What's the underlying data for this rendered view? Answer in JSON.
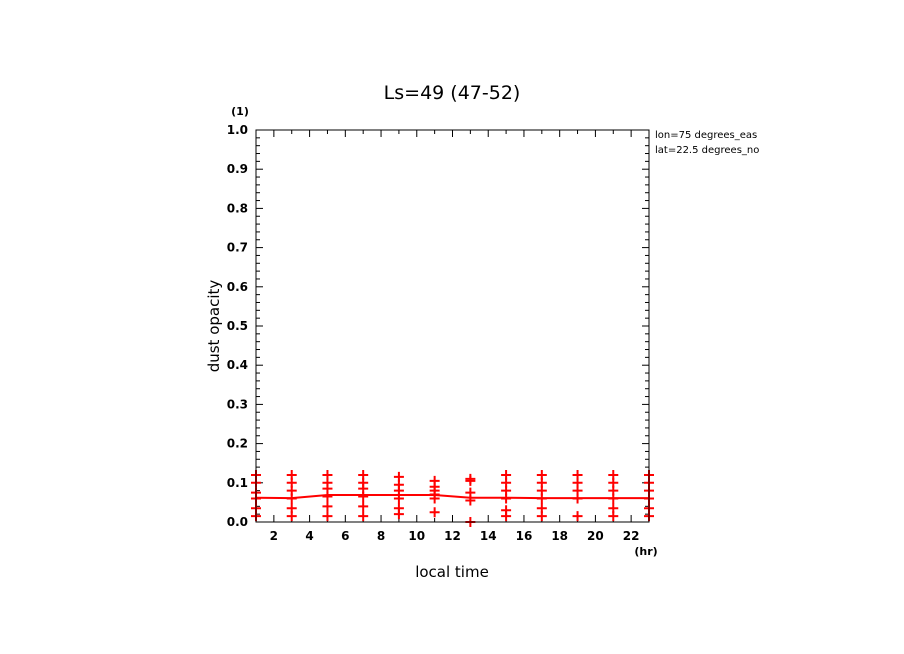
{
  "chart_data": {
    "type": "line",
    "title": "Ls=49 (47-52)",
    "xlabel": "local time",
    "ylabel": "dust opacity",
    "x_unit": "(hr)",
    "y_unit": "(1)",
    "xlim": [
      1,
      23
    ],
    "ylim": [
      0,
      1
    ],
    "x_ticks": [
      2,
      4,
      6,
      8,
      10,
      12,
      14,
      16,
      18,
      20,
      22
    ],
    "x_tick_labels": [
      "2",
      "4",
      "6",
      "8",
      "10",
      "12",
      "14",
      "16",
      "18",
      "20",
      "22"
    ],
    "y_ticks": [
      0,
      0.1,
      0.2,
      0.3,
      0.4,
      0.5,
      0.6,
      0.7,
      0.8,
      0.9,
      1.0
    ],
    "y_tick_labels": [
      "0.0",
      "0.1",
      "0.2",
      "0.3",
      "0.4",
      "0.5",
      "0.6",
      "0.7",
      "0.8",
      "0.9",
      "1.0"
    ],
    "annotations": [
      "lon=75 degrees_eas",
      "lat=22.5 degrees_no"
    ],
    "grid": false,
    "series_color": "#ff0000",
    "series": [
      {
        "style": "line",
        "x": [
          1,
          3,
          5,
          7,
          9,
          11,
          13,
          15,
          17,
          19,
          21,
          23
        ],
        "values": [
          0.062,
          0.061,
          0.069,
          0.069,
          0.069,
          0.069,
          0.062,
          0.062,
          0.061,
          0.061,
          0.061,
          0.061
        ]
      },
      {
        "style": "markers",
        "marker": "plus",
        "x": [
          1,
          1,
          1,
          1,
          1,
          1,
          3,
          3,
          3,
          3,
          3,
          3,
          5,
          5,
          5,
          5,
          5,
          5,
          7,
          7,
          7,
          7,
          7,
          7,
          9,
          9,
          9,
          9,
          9,
          9,
          11,
          11,
          11,
          11,
          11,
          11,
          13,
          13,
          13,
          13,
          13,
          15,
          15,
          15,
          15,
          15,
          15,
          17,
          17,
          17,
          17,
          17,
          17,
          19,
          19,
          19,
          19,
          19,
          21,
          21,
          21,
          21,
          21,
          21,
          23,
          23,
          23,
          23,
          23,
          23
        ],
        "values": [
          0.12,
          0.1,
          0.075,
          0.06,
          0.035,
          0.015,
          0.12,
          0.1,
          0.08,
          0.06,
          0.035,
          0.015,
          0.12,
          0.1,
          0.085,
          0.065,
          0.04,
          0.015,
          0.12,
          0.1,
          0.085,
          0.065,
          0.04,
          0.015,
          0.115,
          0.095,
          0.08,
          0.06,
          0.035,
          0.02,
          0.105,
          0.09,
          0.08,
          0.07,
          0.06,
          0.025,
          0.11,
          0.105,
          0.075,
          0.055,
          0.0,
          0.12,
          0.1,
          0.08,
          0.06,
          0.03,
          0.015,
          0.12,
          0.1,
          0.08,
          0.06,
          0.035,
          0.015,
          0.12,
          0.1,
          0.08,
          0.06,
          0.015,
          0.12,
          0.1,
          0.08,
          0.06,
          0.035,
          0.015,
          0.12,
          0.1,
          0.08,
          0.06,
          0.035,
          0.015
        ]
      }
    ]
  }
}
